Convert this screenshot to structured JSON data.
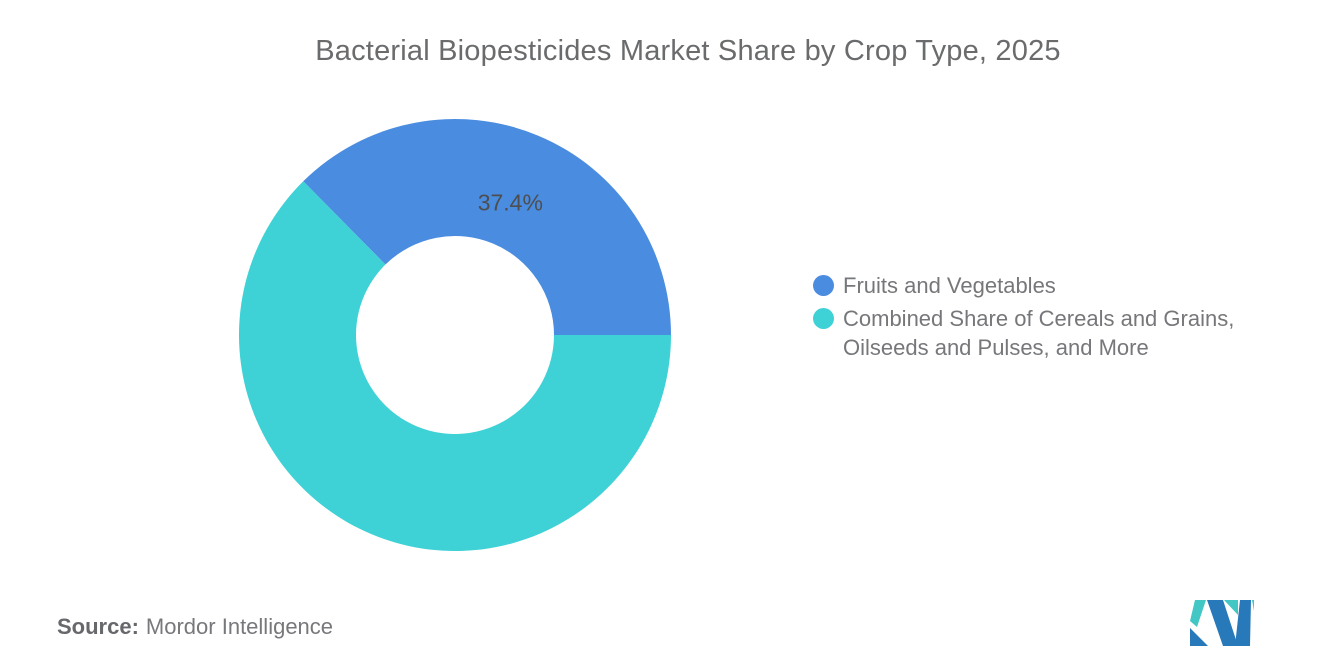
{
  "title": "Bacterial Biopesticides Market Share by Crop Type, 2025",
  "chart_data": {
    "type": "pie",
    "subtype": "donut",
    "title": "Bacterial Biopesticides Market Share by Crop Type, 2025",
    "unit": "%",
    "slices": [
      {
        "label": "Fruits and Vegetables",
        "value": 37.4,
        "color": "#4a8ce0",
        "data_label": "37.4%"
      },
      {
        "label": "Combined Share of Cereals and Grains, Oilseeds and Pulses, and More",
        "value": 62.6,
        "color": "#3ed1d5",
        "data_label": ""
      }
    ],
    "start_angle_deg": -134.64,
    "inner_radius_ratio": 0.46,
    "label_color": "#4d4e50",
    "legend_position": "right",
    "grid": false
  },
  "legend": {
    "items": [
      {
        "label": "Fruits and Vegetables",
        "color": "#4a8ce0"
      },
      {
        "label": "Combined Share of Cereals and Grains,\nOilseeds and Pulses, and More",
        "color": "#3ed1d5"
      }
    ]
  },
  "footer": {
    "source_label": "Source:",
    "source_value": "Mordor Intelligence"
  },
  "logo": {
    "blue": "#2879b9",
    "teal": "#42c7c4"
  }
}
